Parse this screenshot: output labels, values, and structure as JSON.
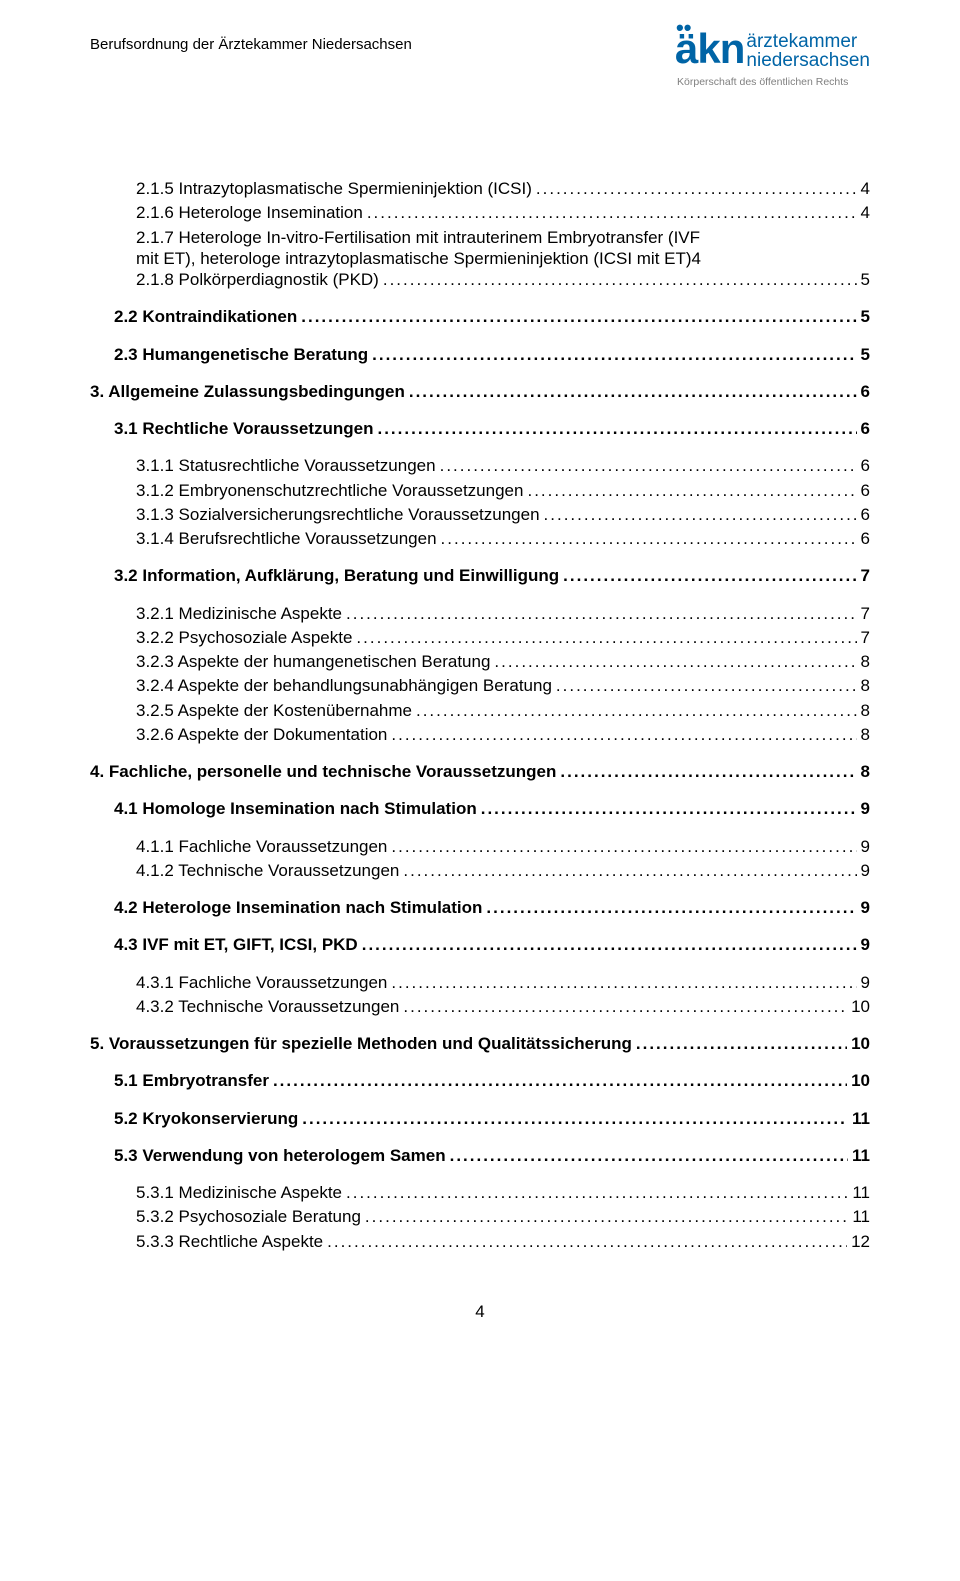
{
  "header": {
    "title": "Berufsordnung der Ärztekammer Niedersachsen",
    "logo_akn": "äkn",
    "logo_line1": "ärztekammer",
    "logo_line2": "niedersachsen",
    "logo_sub": "Körperschaft des öffentlichen Rechts"
  },
  "toc": [
    {
      "label": "2.1.5 Intrazytoplasmatische Spermieninjektion (ICSI)",
      "page": "4",
      "indent": 2,
      "bold": false,
      "gap": false
    },
    {
      "label": "2.1.6 Heterologe Insemination",
      "page": "4",
      "indent": 2,
      "bold": false,
      "gap": false
    },
    {
      "label": "2.1.7 Heterologe In-vitro-Fertilisation mit intrauterinem Embryotransfer (IVF mit ET), heterologe intrazytoplasmatische Spermieninjektion (ICSI mit ET)",
      "page": "4",
      "indent": 2,
      "bold": false,
      "gap": false,
      "multiline": true
    },
    {
      "label": "2.1.8 Polkörperdiagnostik (PKD)",
      "page": "5",
      "indent": 2,
      "bold": false,
      "gap": false
    },
    {
      "label": "2.2 Kontraindikationen",
      "page": "5",
      "indent": 1,
      "bold": true,
      "gap": true
    },
    {
      "label": "2.3 Humangenetische Beratung",
      "page": "5",
      "indent": 1,
      "bold": true,
      "gap": true
    },
    {
      "label": "3. Allgemeine Zulassungsbedingungen",
      "page": "6",
      "indent": 0,
      "bold": true,
      "gap": true
    },
    {
      "label": "3.1 Rechtliche Voraussetzungen",
      "page": "6",
      "indent": 1,
      "bold": true,
      "gap": true
    },
    {
      "label": "3.1.1 Statusrechtliche Voraussetzungen",
      "page": "6",
      "indent": 2,
      "bold": false,
      "gap": true
    },
    {
      "label": "3.1.2 Embryonenschutzrechtliche Voraussetzungen",
      "page": "6",
      "indent": 2,
      "bold": false,
      "gap": false
    },
    {
      "label": "3.1.3 Sozialversicherungsrechtliche Voraussetzungen",
      "page": "6",
      "indent": 2,
      "bold": false,
      "gap": false
    },
    {
      "label": "3.1.4 Berufsrechtliche Voraussetzungen",
      "page": "6",
      "indent": 2,
      "bold": false,
      "gap": false
    },
    {
      "label": "3.2 Information, Aufklärung, Beratung und Einwilligung",
      "page": "7",
      "indent": 1,
      "bold": true,
      "gap": true
    },
    {
      "label": "3.2.1 Medizinische Aspekte",
      "page": "7",
      "indent": 2,
      "bold": false,
      "gap": true
    },
    {
      "label": "3.2.2 Psychosoziale Aspekte",
      "page": "7",
      "indent": 2,
      "bold": false,
      "gap": false
    },
    {
      "label": "3.2.3 Aspekte der humangenetischen Beratung",
      "page": "8",
      "indent": 2,
      "bold": false,
      "gap": false
    },
    {
      "label": "3.2.4 Aspekte der behandlungsunabhängigen Beratung",
      "page": "8",
      "indent": 2,
      "bold": false,
      "gap": false
    },
    {
      "label": "3.2.5 Aspekte der Kostenübernahme",
      "page": "8",
      "indent": 2,
      "bold": false,
      "gap": false
    },
    {
      "label": "3.2.6 Aspekte der Dokumentation",
      "page": "8",
      "indent": 2,
      "bold": false,
      "gap": false
    },
    {
      "label": "4. Fachliche, personelle und technische Voraussetzungen",
      "page": "8",
      "indent": 0,
      "bold": true,
      "gap": true
    },
    {
      "label": "4.1 Homologe Insemination nach Stimulation",
      "page": "9",
      "indent": 1,
      "bold": true,
      "gap": true
    },
    {
      "label": "4.1.1 Fachliche Voraussetzungen",
      "page": "9",
      "indent": 2,
      "bold": false,
      "gap": true
    },
    {
      "label": "4.1.2 Technische Voraussetzungen",
      "page": "9",
      "indent": 2,
      "bold": false,
      "gap": false
    },
    {
      "label": "4.2 Heterologe Insemination nach Stimulation",
      "page": "9",
      "indent": 1,
      "bold": true,
      "gap": true
    },
    {
      "label": "4.3 IVF mit ET, GIFT, ICSI, PKD",
      "page": "9",
      "indent": 1,
      "bold": true,
      "gap": true
    },
    {
      "label": "4.3.1 Fachliche Voraussetzungen",
      "page": "9",
      "indent": 2,
      "bold": false,
      "gap": true
    },
    {
      "label": "4.3.2 Technische Voraussetzungen",
      "page": "10",
      "indent": 2,
      "bold": false,
      "gap": false
    },
    {
      "label": "5. Voraussetzungen für spezielle Methoden und Qualitätssicherung",
      "page": "10",
      "indent": 0,
      "bold": true,
      "gap": true
    },
    {
      "label": "5.1 Embryotransfer",
      "page": "10",
      "indent": 1,
      "bold": true,
      "gap": true
    },
    {
      "label": "5.2 Kryokonservierung",
      "page": "11",
      "indent": 1,
      "bold": true,
      "gap": true
    },
    {
      "label": "5.3 Verwendung von heterologem Samen",
      "page": "11",
      "indent": 1,
      "bold": true,
      "gap": true
    },
    {
      "label": "5.3.1 Medizinische Aspekte",
      "page": "11",
      "indent": 2,
      "bold": false,
      "gap": true
    },
    {
      "label": "5.3.2 Psychosoziale Beratung",
      "page": "11",
      "indent": 2,
      "bold": false,
      "gap": false
    },
    {
      "label": "5.3.3 Rechtliche Aspekte",
      "page": "12",
      "indent": 2,
      "bold": false,
      "gap": false
    }
  ],
  "page_number": "4",
  "multiline_page": "4",
  "multiline_lines": [
    "2.1.7 Heterologe In-vitro-Fertilisation mit intrauterinem Embryotransfer (IVF",
    "mit ET), heterologe intrazytoplasmatische Spermieninjektion (ICSI mit ET)"
  ]
}
